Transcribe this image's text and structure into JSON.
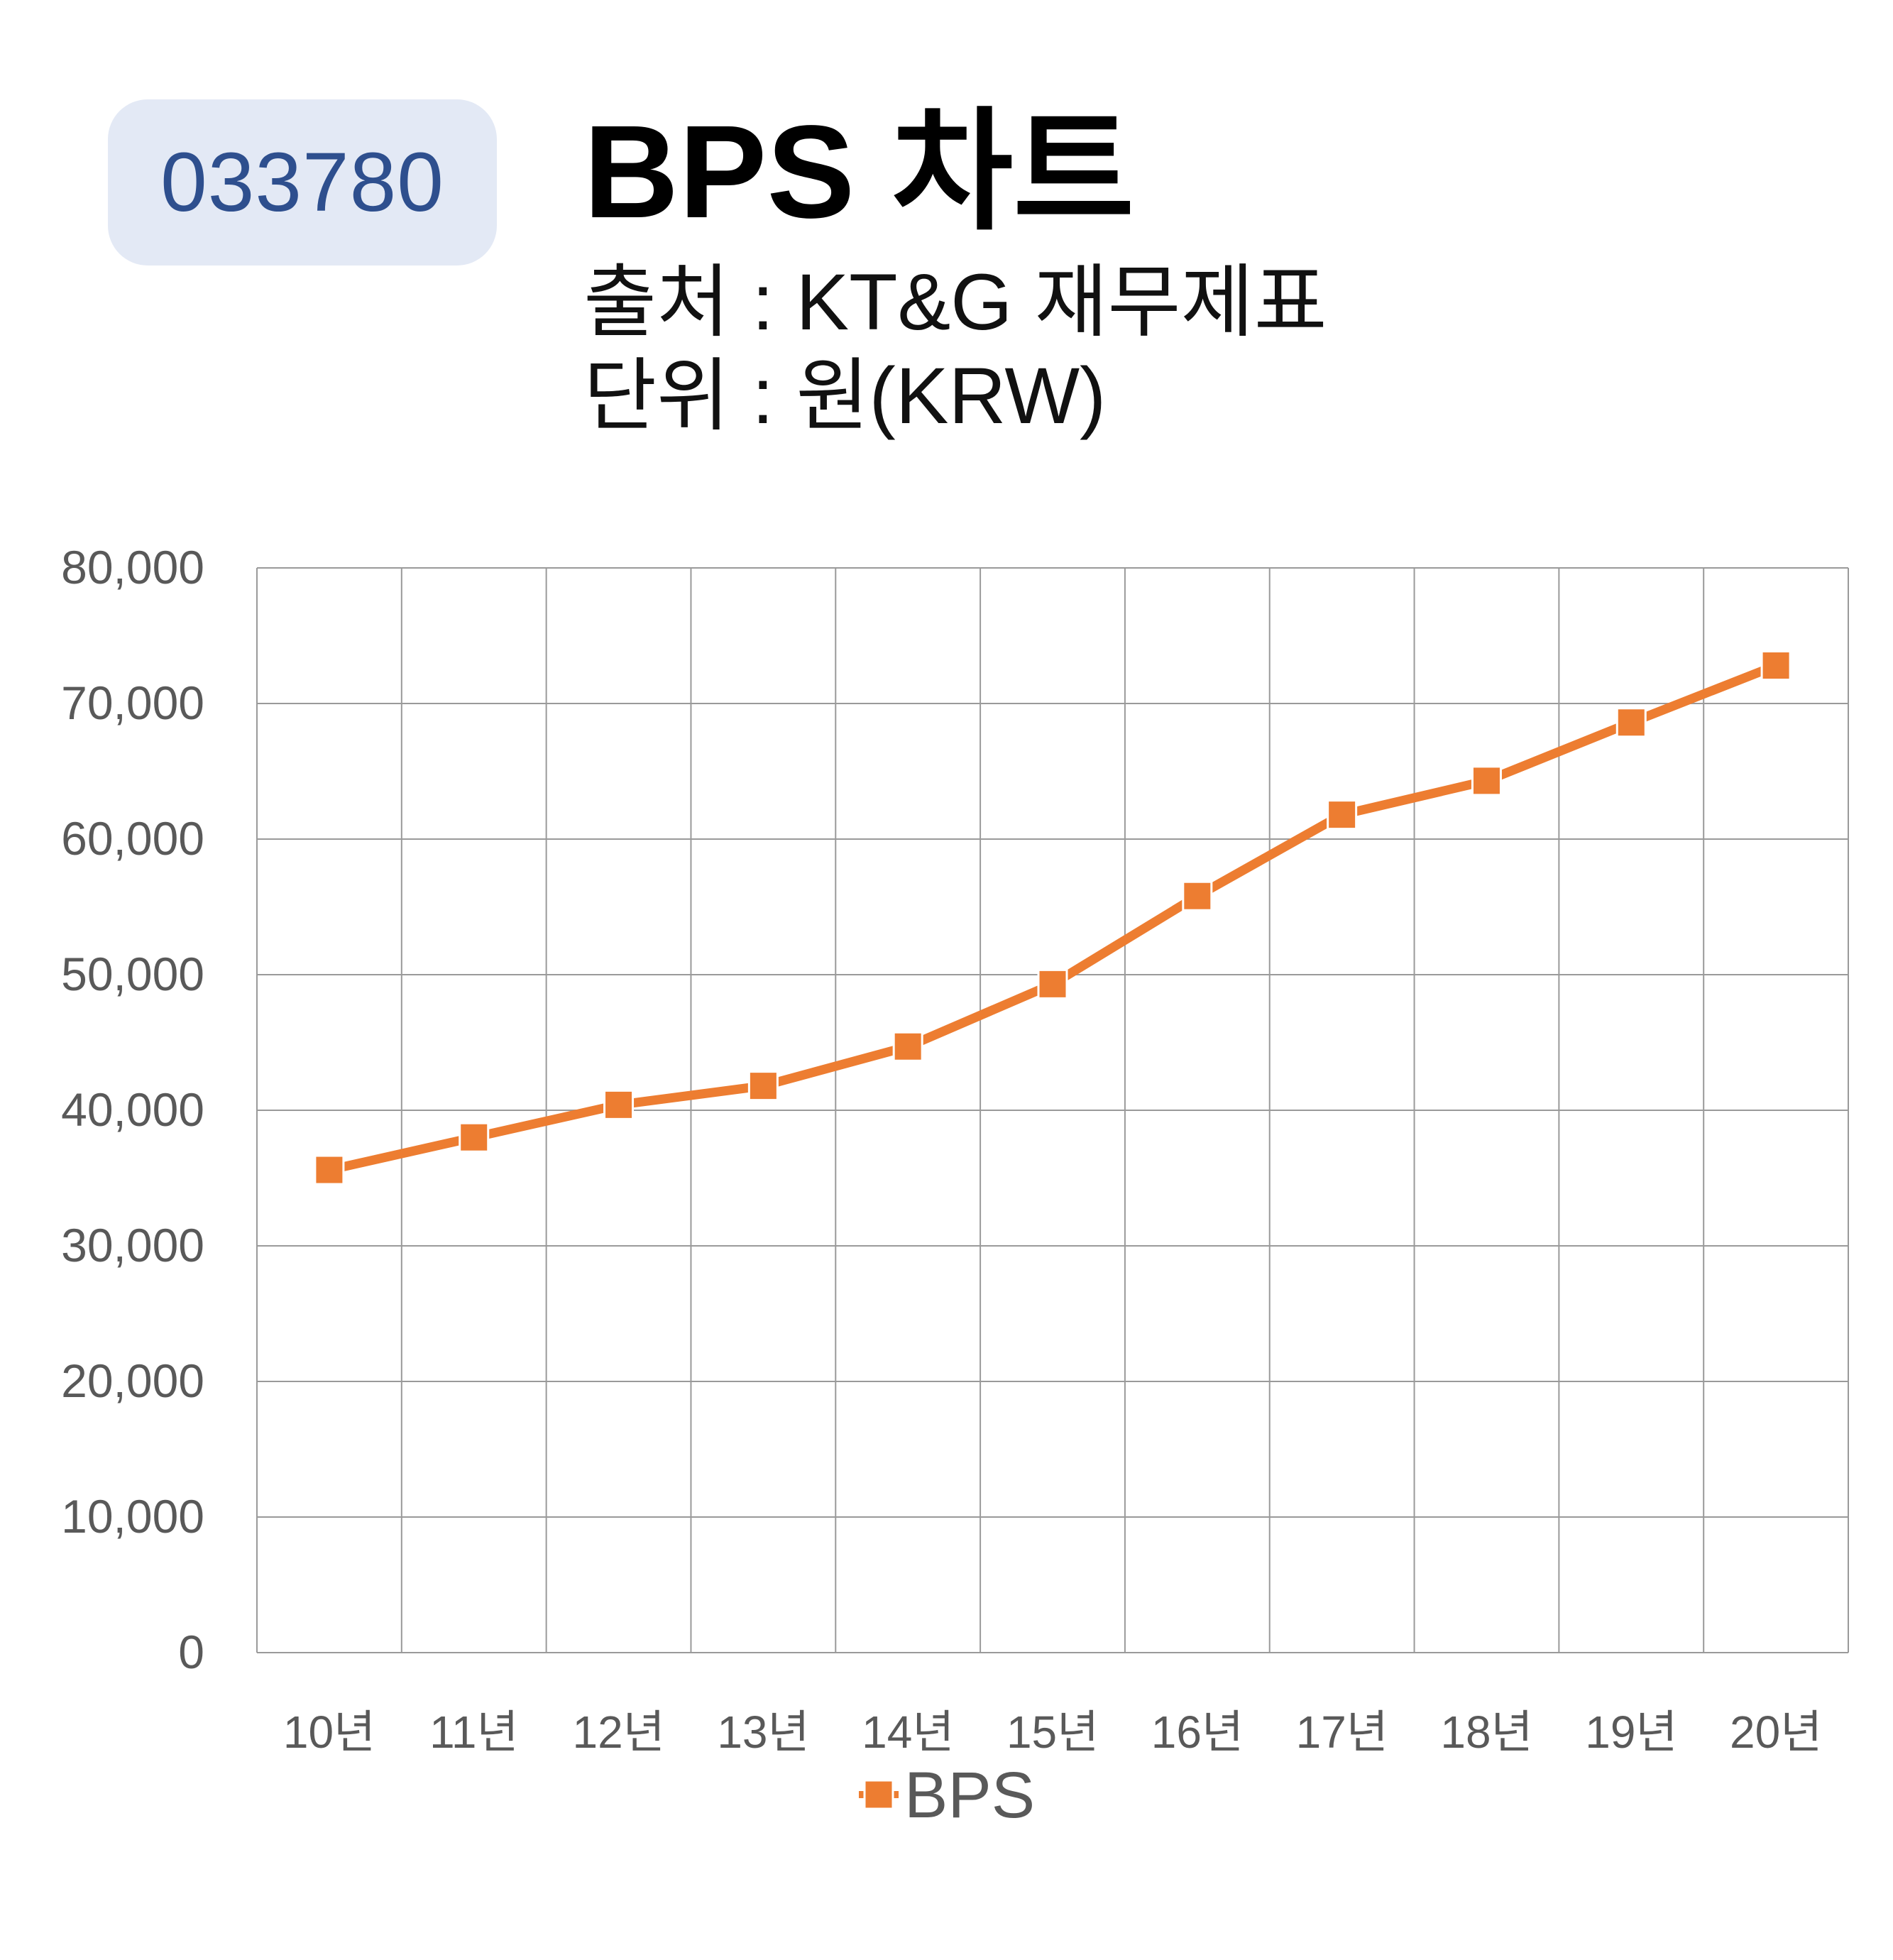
{
  "header": {
    "code": "033780",
    "title": "BPS 차트",
    "source_line": "출처 : KT&G 재무제표",
    "unit_line": "단위 : 원(KRW)"
  },
  "colors": {
    "badge_bg": "#e3e9f5",
    "badge_text": "#2e4f8e",
    "series": "#ed7d31",
    "grid": "#9a9a9a",
    "axis_text": "#595959"
  },
  "chart_data": {
    "type": "line",
    "categories": [
      "10년",
      "11년",
      "12년",
      "13년",
      "14년",
      "15년",
      "16년",
      "17년",
      "18년",
      "19년",
      "20년"
    ],
    "series": [
      {
        "name": "BPS",
        "values": [
          35600,
          38000,
          40400,
          41800,
          44700,
          49300,
          55800,
          61800,
          64300,
          68600,
          72800
        ]
      }
    ],
    "y_ticks": [
      "0",
      "10,000",
      "20,000",
      "30,000",
      "40,000",
      "50,000",
      "60,000",
      "70,000",
      "80,000"
    ],
    "ylim": [
      0,
      80000
    ],
    "grid": true,
    "legend_position": "bottom-center",
    "marker": "square"
  }
}
